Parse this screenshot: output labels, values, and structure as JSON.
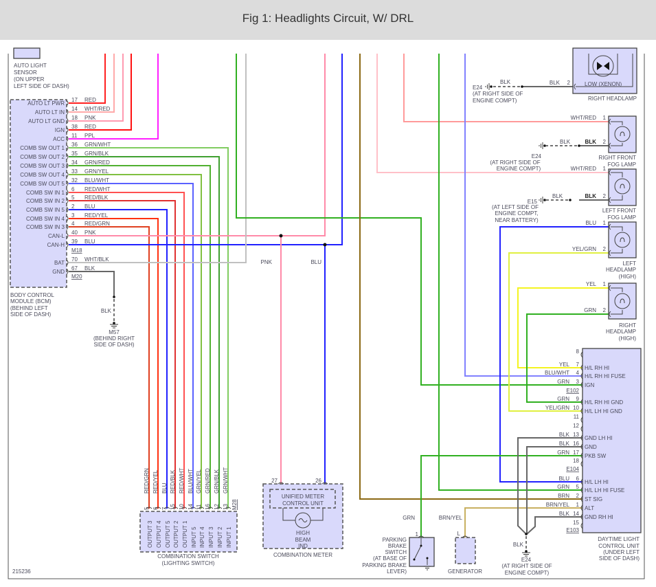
{
  "header": {
    "title": "Fig 1: Headlights Circuit, W/ DRL"
  },
  "figure_id": "215236",
  "auto_light_sensor": {
    "label": [
      "AUTO LIGHT",
      "SENSOR",
      "(ON UPPER",
      "LEFT SIDE OF DASH)"
    ]
  },
  "bcm": {
    "name": [
      "BODY CONTROL",
      "MODULE (BCM)",
      "(BEHIND LEFT",
      "SIDE OF DASH)"
    ],
    "pins": [
      {
        "label": "AUTO LT PWR",
        "num": "17",
        "wire": "RED"
      },
      {
        "label": "AUTO LT IN",
        "num": "14",
        "wire": "WHT/RED"
      },
      {
        "label": "AUTO LT GND",
        "num": "18",
        "wire": "PNK"
      },
      {
        "label": "IGN",
        "num": "38",
        "wire": "RED"
      },
      {
        "label": "ACC",
        "num": "11",
        "wire": "PPL"
      },
      {
        "label": "COMB SW OUT 1",
        "num": "36",
        "wire": "GRN/WHT"
      },
      {
        "label": "COMB SW OUT 2",
        "num": "35",
        "wire": "GRN/BLK"
      },
      {
        "label": "COMB SW OUT 3",
        "num": "34",
        "wire": "GRN/RED"
      },
      {
        "label": "COMB SW OUT 4",
        "num": "33",
        "wire": "GRN/YEL"
      },
      {
        "label": "COMB SW OUT 5",
        "num": "32",
        "wire": "BLU/WHT"
      },
      {
        "label": "COMB SW IN 1",
        "num": "6",
        "wire": "RED/WHT"
      },
      {
        "label": "COMB SW IN 2",
        "num": "5",
        "wire": "RED/BLK"
      },
      {
        "label": "COMB SW IN 5",
        "num": "2",
        "wire": "BLU"
      },
      {
        "label": "COMB SW IN 4",
        "num": "3",
        "wire": "RED/YEL"
      },
      {
        "label": "COMB SW IN 3",
        "num": "4",
        "wire": "RED/GRN"
      },
      {
        "label": "CAN-L",
        "num": "40",
        "wire": "PNK"
      },
      {
        "label": "CAN-H",
        "num": "39",
        "wire": "BLU"
      },
      {
        "label": "BAT",
        "num": "70",
        "wire": "WHT/BLK"
      },
      {
        "label": "GND",
        "num": "67",
        "wire": "BLK"
      }
    ],
    "connectors": [
      "M18",
      "M20"
    ]
  },
  "ground_m57": {
    "wire": "BLK",
    "id": "M57",
    "location": [
      "(BEHIND RIGHT",
      "SIDE OF DASH)"
    ]
  },
  "can_branch": {
    "pnk": "PNK",
    "blu": "BLU"
  },
  "combination_switch": {
    "name": [
      "COMBINATION SWITCH",
      "(LIGHTING SWITCH)"
    ],
    "connector": "M28",
    "pins": [
      {
        "num": "5",
        "wire": "RED/GRN",
        "label": "OUTPUT 3"
      },
      {
        "num": "6",
        "wire": "RED/YEL",
        "label": "OUTPUT 4"
      },
      {
        "num": "7",
        "wire": "BLU",
        "label": "OUTPUT 5"
      },
      {
        "num": "15",
        "wire": "RED/BLK",
        "label": "OUTPUT 2"
      },
      {
        "num": "10",
        "wire": "RED/WHT",
        "label": "OUTPUT 1"
      },
      {
        "num": "14",
        "wire": "BLU/WHT",
        "label": "INPUT 5"
      },
      {
        "num": "11",
        "wire": "GRN/YEL",
        "label": "INPUT 4"
      },
      {
        "num": "16",
        "wire": "GRN/RED",
        "label": "INPUT 3"
      },
      {
        "num": "12",
        "wire": "GRN/BLK",
        "label": "INPUT 2"
      },
      {
        "num": "13",
        "wire": "GRN/WHT",
        "label": "INPUT 1"
      }
    ]
  },
  "combination_meter": {
    "name": "COMBINATION METER",
    "unit": [
      "UNIFIED METER",
      "CONTROL UNIT"
    ],
    "indicator": [
      "HIGH",
      "BEAM",
      "IND"
    ],
    "pins": [
      {
        "num": "27",
        "wire": "PNK"
      },
      {
        "num": "26",
        "wire": "BLU"
      }
    ]
  },
  "parking_brake_switch": {
    "name": [
      "PARKING",
      "BRAKE",
      "SWITCH",
      "(AT BASE OF",
      "PARKING BRAKE",
      "LEVER)"
    ],
    "pin": "1",
    "wire": "GRN"
  },
  "generator": {
    "name": "GENERATOR",
    "pin": "L",
    "wire": "BRN/YEL"
  },
  "right_headlamp_low": {
    "name": "RIGHT HEADLAMP",
    "inner": "LOW  (XENON)",
    "pin": "2",
    "wire": "BLK",
    "ground": {
      "wire": "BLK",
      "id": "E24",
      "location": [
        "(AT RIGHT SIDE OF",
        "ENGINE COMPT)"
      ]
    }
  },
  "right_front_fog_lamp": {
    "name": [
      "RIGHT FRONT",
      "FOG LAMP"
    ],
    "pin1": {
      "num": "1",
      "wire": "WHT/RED"
    },
    "pin2": {
      "num": "2",
      "wire": "BLK"
    },
    "ground": {
      "wire": "BLK",
      "id": "E24",
      "location": [
        "(AT RIGHT SIDE OF",
        "ENGINE COMPT)"
      ]
    }
  },
  "left_front_fog_lamp": {
    "name": [
      "LEFT FRONT",
      "FOG LAMP"
    ],
    "pin1": {
      "num": "1",
      "wire": "WHT/RED"
    },
    "pin2": {
      "num": "2",
      "wire": "BLK"
    },
    "ground": {
      "wire": "BLK",
      "id": "E15",
      "location": [
        "(AT LEFT SIDE OF",
        "ENGINE COMPT,",
        "NEAR BATTERY)"
      ]
    }
  },
  "left_headlamp_high": {
    "name": [
      "LEFT",
      "HEADLAMP",
      "(HIGH)"
    ],
    "pin1": {
      "num": "1",
      "wire": "BLU"
    },
    "pin2": {
      "num": "2",
      "wire": "YEL/GRN"
    }
  },
  "right_headlamp_high": {
    "name": [
      "RIGHT",
      "HEADLAMP",
      "(HIGH)"
    ],
    "pin1": {
      "num": "1",
      "wire": "YEL"
    },
    "pin2": {
      "num": "2",
      "wire": "GRN"
    }
  },
  "dlcu": {
    "name": [
      "DAYTIME LIGHT",
      "CONTROL UNIT",
      "(UNDER LEFT",
      "SIDE OF DASH)"
    ],
    "connectors": [
      "E102",
      "E104",
      "E103"
    ],
    "pins": [
      {
        "num": "8",
        "wire": "",
        "label": ""
      },
      {
        "num": "7",
        "wire": "YEL",
        "label": "H/L RH HI"
      },
      {
        "num": "4",
        "wire": "BLU/WHT",
        "label": "H/L RH HI FUSE"
      },
      {
        "num": "3",
        "wire": "GRN",
        "label": "IGN"
      },
      {
        "num": "9",
        "wire": "GRN",
        "label": "H/L RH HI GND"
      },
      {
        "num": "10",
        "wire": "YEL/GRN",
        "label": "H/L LH HI GND"
      },
      {
        "num": "11",
        "wire": "",
        "label": ""
      },
      {
        "num": "12",
        "wire": "",
        "label": ""
      },
      {
        "num": "13",
        "wire": "BLK",
        "label": "GND LH HI"
      },
      {
        "num": "16",
        "wire": "BLK",
        "label": "GND"
      },
      {
        "num": "17",
        "wire": "GRN",
        "label": "PKB SW"
      },
      {
        "num": "18",
        "wire": "",
        "label": ""
      },
      {
        "num": "6",
        "wire": "BLU",
        "label": "H/L LH HI"
      },
      {
        "num": "5",
        "wire": "GRN",
        "label": "H/L LH HI FUSE"
      },
      {
        "num": "2",
        "wire": "BRN",
        "label": "ST SIG"
      },
      {
        "num": "1",
        "wire": "BRN/YEL",
        "label": "ALT"
      },
      {
        "num": "14",
        "wire": "BLK",
        "label": "GND RH HI"
      },
      {
        "num": "15",
        "wire": "",
        "label": ""
      }
    ],
    "ground": {
      "wire": "BLK",
      "id": "E24",
      "location": [
        "(AT RIGHT SIDE OF",
        "ENGINE COMPT)"
      ]
    }
  },
  "wire_colors": {
    "RED": "#ff2020",
    "WHT/RED": "#ff9aa0",
    "PNK": "#ff8aa8",
    "PPL": "#ff20ff",
    "GRN": "#30b020",
    "BLU": "#2020ff",
    "BLU/WHT": "#6a70ff",
    "BRN": "#8b6914",
    "BRN/YEL": "#c8b060",
    "YEL": "#f4f420",
    "YEL/GRN": "#e0f040",
    "BLK": "#666666",
    "WHT/BLK": "#c0c0c0"
  }
}
